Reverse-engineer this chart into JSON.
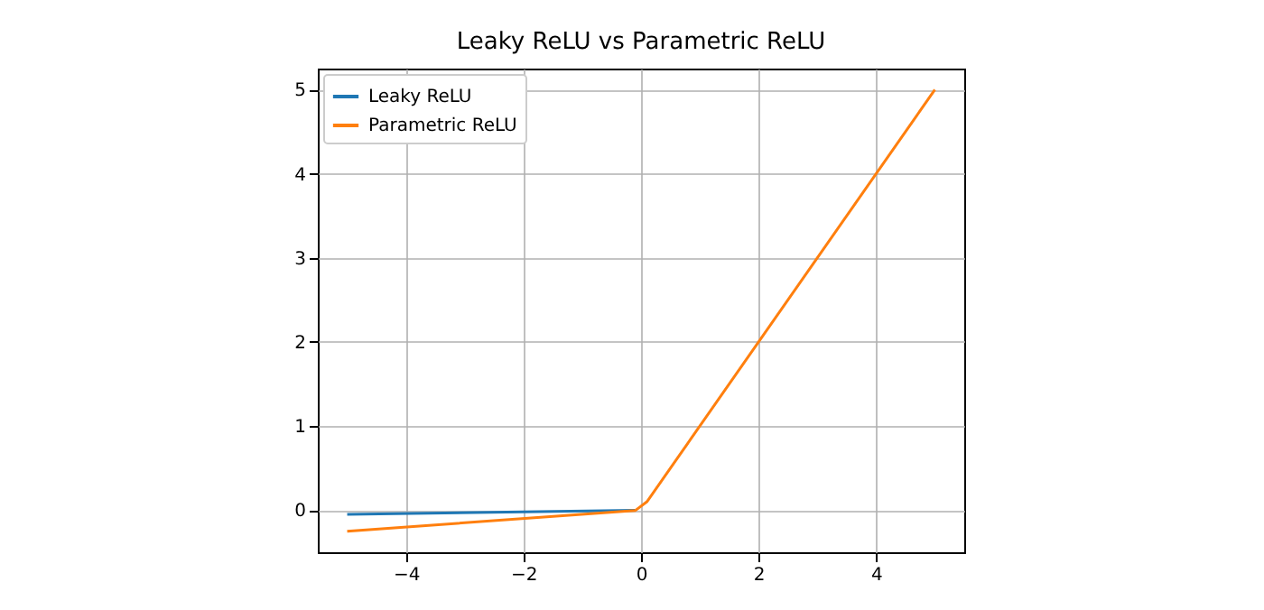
{
  "chart_data": {
    "type": "line",
    "title": "Leaky ReLU vs Parametric ReLU",
    "series": [
      {
        "name": "Leaky ReLU",
        "color": "#1f77b4",
        "x": [
          -5,
          -0.1
        ],
        "values": [
          -0.05,
          0
        ]
      },
      {
        "name": "Parametric ReLU",
        "color": "#ff7f0e",
        "x": [
          -5,
          -0.1,
          0.1,
          5
        ],
        "values": [
          -0.25,
          -0.005,
          0.1,
          5
        ]
      }
    ],
    "xlim": [
      -5.5,
      5.5
    ],
    "xticks": [
      -4,
      -2,
      0,
      2,
      4
    ],
    "ylim": [
      -0.5,
      5.25
    ],
    "yticks": [
      0,
      1,
      2,
      3,
      4,
      5
    ],
    "grid": true,
    "legend": "top left",
    "marker": "none",
    "line_style": "solid"
  }
}
